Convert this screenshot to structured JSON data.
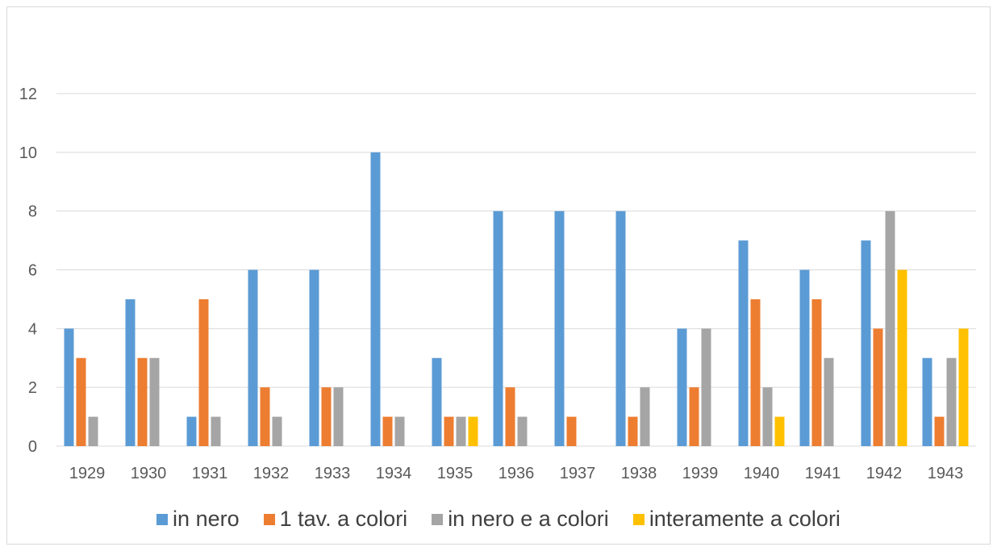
{
  "chart_data": {
    "type": "bar",
    "title": "",
    "xlabel": "",
    "ylabel": "",
    "ylim": [
      0,
      12
    ],
    "yticks": [
      0,
      2,
      4,
      6,
      8,
      10,
      12
    ],
    "grid": true,
    "legend_position": "bottom",
    "categories": [
      "1929",
      "1930",
      "1931",
      "1932",
      "1933",
      "1934",
      "1935",
      "1936",
      "1937",
      "1938",
      "1939",
      "1940",
      "1941",
      "1942",
      "1943"
    ],
    "series": [
      {
        "name": "in nero",
        "color": "#5b9bd5",
        "values": [
          4,
          5,
          1,
          6,
          6,
          10,
          3,
          8,
          8,
          8,
          4,
          7,
          6,
          7,
          3
        ]
      },
      {
        "name": "1 tav. a colori",
        "color": "#ed7d31",
        "values": [
          3,
          3,
          5,
          2,
          2,
          1,
          1,
          2,
          1,
          1,
          2,
          5,
          5,
          4,
          1
        ]
      },
      {
        "name": "in nero e a colori",
        "color": "#a5a5a5",
        "values": [
          1,
          3,
          1,
          1,
          2,
          1,
          1,
          1,
          0,
          2,
          4,
          2,
          3,
          8,
          3
        ]
      },
      {
        "name": "interamente a colori",
        "color": "#ffc000",
        "values": [
          0,
          0,
          0,
          0,
          0,
          0,
          1,
          0,
          0,
          0,
          0,
          1,
          0,
          6,
          4
        ]
      }
    ]
  }
}
